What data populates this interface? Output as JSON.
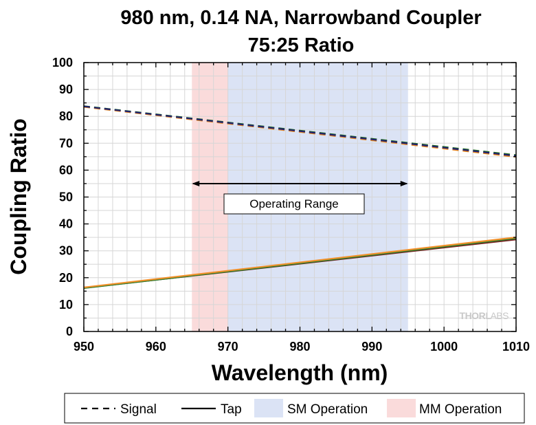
{
  "chart_data": {
    "type": "line",
    "title": [
      "980 nm, 0.14 NA, Narrowband Coupler",
      "75:25 Ratio"
    ],
    "xlabel": "Wavelength (nm)",
    "ylabel": "Coupling Ratio",
    "xlim": [
      950,
      1010
    ],
    "ylim": [
      0,
      100
    ],
    "x_ticks": [
      "950",
      "960",
      "970",
      "980",
      "990",
      "1000",
      "1010"
    ],
    "y_ticks": [
      "0",
      "10",
      "20",
      "30",
      "40",
      "50",
      "60",
      "70",
      "80",
      "90",
      "100"
    ],
    "grid": true,
    "regions": [
      {
        "name": "MM Operation",
        "x_range": [
          965,
          970
        ],
        "color": "#fadbdb"
      },
      {
        "name": "SM Operation",
        "x_range": [
          970,
          995
        ],
        "color": "#dbe3f5"
      }
    ],
    "series": [
      {
        "name": "Signal",
        "style": "dashed",
        "color": "#1f6b1f",
        "x": [
          950,
          1010
        ],
        "y": [
          83.8,
          65.6
        ]
      },
      {
        "name": "Signal",
        "style": "dashed",
        "color": "#e8871e",
        "x": [
          950,
          1010
        ],
        "y": [
          83.5,
          64.9
        ]
      },
      {
        "name": "Signal",
        "style": "dashed",
        "color": "#22226e",
        "x": [
          950,
          1010
        ],
        "y": [
          83.7,
          65.3
        ]
      },
      {
        "name": "Tap",
        "style": "solid",
        "color": "#7a1f1f",
        "x": [
          950,
          1010
        ],
        "y": [
          16.2,
          34.2
        ]
      },
      {
        "name": "Tap",
        "style": "solid",
        "color": "#2e7d2e",
        "x": [
          950,
          1010
        ],
        "y": [
          16.1,
          34.6
        ]
      },
      {
        "name": "Tap",
        "style": "solid",
        "color": "#f0902a",
        "x": [
          950,
          1010
        ],
        "y": [
          16.4,
          35.0
        ]
      }
    ],
    "annotation": {
      "text": "Operating Range",
      "x_range": [
        965,
        995
      ],
      "y": 55
    },
    "legend": {
      "position": "bottom",
      "entries": [
        {
          "label": "Signal",
          "style": "dashed"
        },
        {
          "label": "Tap",
          "style": "solid"
        },
        {
          "label": "SM Operation",
          "style": "patch",
          "color": "#dbe3f5"
        },
        {
          "label": "MM Operation",
          "style": "patch",
          "color": "#fadbdb"
        }
      ]
    },
    "watermark": "THORLABS"
  }
}
